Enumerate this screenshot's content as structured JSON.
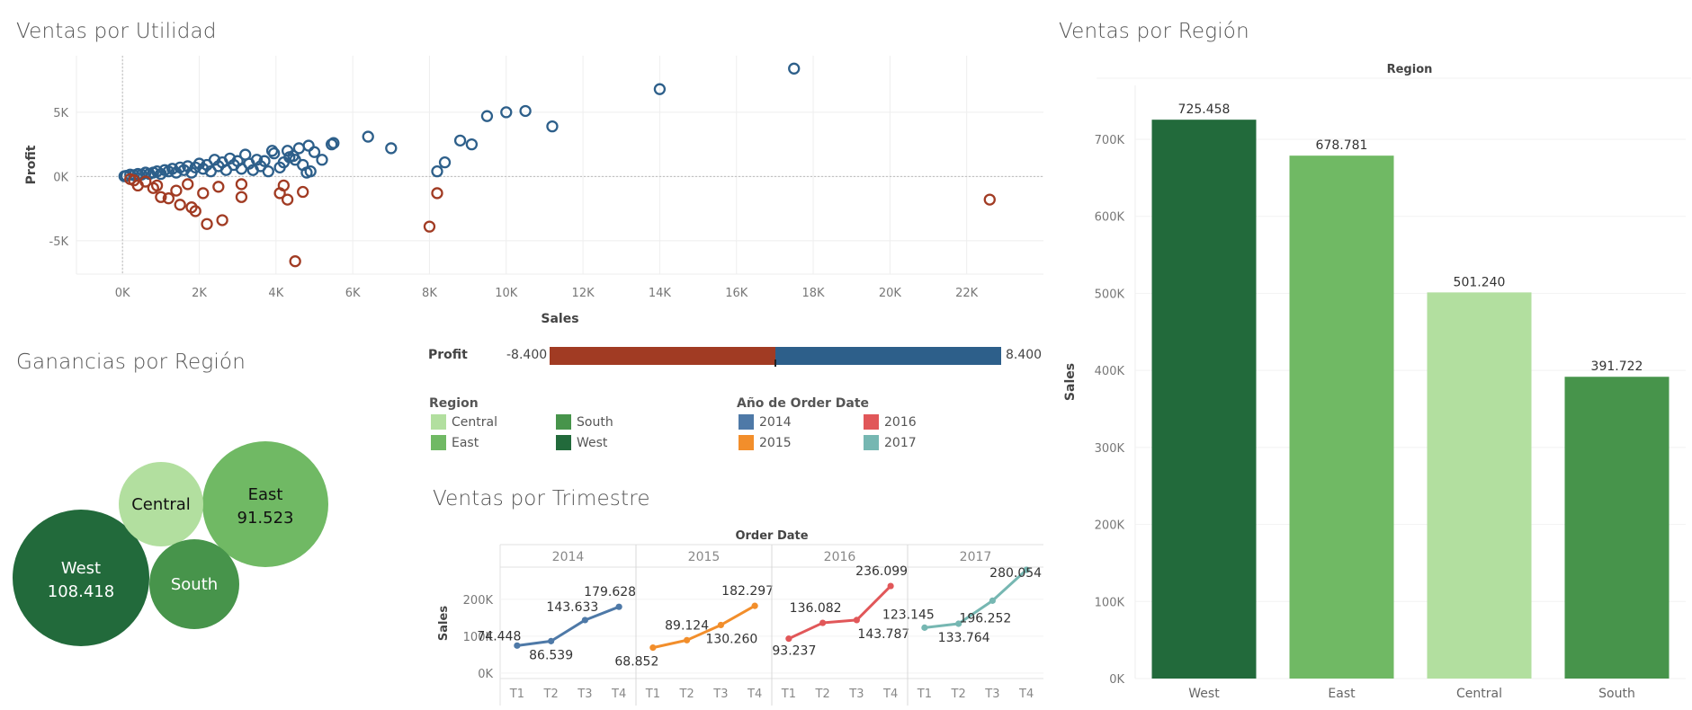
{
  "colors": {
    "profit_positive": "#2d5f8a",
    "profit_negative": "#a13b23",
    "west": "#226a3b",
    "east": "#70b964",
    "central": "#b2df9f",
    "south": "#47944b",
    "y2014": "#4e79a7",
    "y2015": "#f28e2b",
    "y2016": "#e15759",
    "y2017": "#76b7b2"
  },
  "scatter": {
    "title": "Ventas por Utilidad",
    "chart_data": {
      "type": "scatter",
      "xlabel": "Sales",
      "ylabel": "Profit",
      "xlim": [
        -1200,
        24000
      ],
      "ylim": [
        -7600,
        9400
      ],
      "x_ticks": [
        "0K",
        "2K",
        "4K",
        "6K",
        "8K",
        "10K",
        "12K",
        "14K",
        "16K",
        "18K",
        "20K",
        "22K"
      ],
      "x_tick_values": [
        0,
        2000,
        4000,
        6000,
        8000,
        10000,
        12000,
        14000,
        16000,
        18000,
        20000,
        22000
      ],
      "y_ticks": [
        "5K",
        "0K",
        "-5K"
      ],
      "y_tick_values": [
        5000,
        0,
        -5000
      ],
      "grid": true,
      "points": [
        {
          "x": 17500,
          "y": 8400
        },
        {
          "x": 14000,
          "y": 6800
        },
        {
          "x": 11200,
          "y": 3900
        },
        {
          "x": 10500,
          "y": 5100
        },
        {
          "x": 10000,
          "y": 5000
        },
        {
          "x": 9500,
          "y": 4700
        },
        {
          "x": 9100,
          "y": 2500
        },
        {
          "x": 8800,
          "y": 2800
        },
        {
          "x": 8400,
          "y": 1100
        },
        {
          "x": 8200,
          "y": 400
        },
        {
          "x": 7000,
          "y": 2200
        },
        {
          "x": 6400,
          "y": 3100
        },
        {
          "x": 5500,
          "y": 2600
        },
        {
          "x": 5450,
          "y": 2500
        },
        {
          "x": 5200,
          "y": 1300
        },
        {
          "x": 5000,
          "y": 1900
        },
        {
          "x": 4900,
          "y": 400
        },
        {
          "x": 4850,
          "y": 2400
        },
        {
          "x": 4800,
          "y": 300
        },
        {
          "x": 4700,
          "y": 900
        },
        {
          "x": 4600,
          "y": 2200
        },
        {
          "x": 4500,
          "y": 1300
        },
        {
          "x": 4450,
          "y": 1600
        },
        {
          "x": 4350,
          "y": 1500
        },
        {
          "x": 4300,
          "y": 2000
        },
        {
          "x": 4200,
          "y": 1100
        },
        {
          "x": 4100,
          "y": 700
        },
        {
          "x": 3950,
          "y": 1800
        },
        {
          "x": 3900,
          "y": 2000
        },
        {
          "x": 3800,
          "y": 400
        },
        {
          "x": 3700,
          "y": 1200
        },
        {
          "x": 3600,
          "y": 800
        },
        {
          "x": 3500,
          "y": 1300
        },
        {
          "x": 3400,
          "y": 500
        },
        {
          "x": 3300,
          "y": 1000
        },
        {
          "x": 3200,
          "y": 1700
        },
        {
          "x": 3100,
          "y": 600
        },
        {
          "x": 3000,
          "y": 1200
        },
        {
          "x": 2900,
          "y": 900
        },
        {
          "x": 2800,
          "y": 1400
        },
        {
          "x": 2700,
          "y": 500
        },
        {
          "x": 2600,
          "y": 1100
        },
        {
          "x": 2500,
          "y": 800
        },
        {
          "x": 2400,
          "y": 1300
        },
        {
          "x": 2300,
          "y": 400
        },
        {
          "x": 2200,
          "y": 900
        },
        {
          "x": 2100,
          "y": 600
        },
        {
          "x": 2000,
          "y": 1000
        },
        {
          "x": 1900,
          "y": 700
        },
        {
          "x": 1800,
          "y": 300
        },
        {
          "x": 1700,
          "y": 800
        },
        {
          "x": 1600,
          "y": 500
        },
        {
          "x": 1500,
          "y": 700
        },
        {
          "x": 1400,
          "y": 300
        },
        {
          "x": 1300,
          "y": 600
        },
        {
          "x": 1200,
          "y": 400
        },
        {
          "x": 1100,
          "y": 500
        },
        {
          "x": 1000,
          "y": 200
        },
        {
          "x": 900,
          "y": 400
        },
        {
          "x": 800,
          "y": 300
        },
        {
          "x": 700,
          "y": 200
        },
        {
          "x": 600,
          "y": 300
        },
        {
          "x": 500,
          "y": 150
        },
        {
          "x": 400,
          "y": 200
        },
        {
          "x": 300,
          "y": 100
        },
        {
          "x": 200,
          "y": 150
        },
        {
          "x": 100,
          "y": 50
        },
        {
          "x": 50,
          "y": 20
        },
        {
          "x": 22600,
          "y": -1800
        },
        {
          "x": 8200,
          "y": -1300
        },
        {
          "x": 8000,
          "y": -3900
        },
        {
          "x": 4500,
          "y": -6600
        },
        {
          "x": 4300,
          "y": -1800
        },
        {
          "x": 4200,
          "y": -700
        },
        {
          "x": 4100,
          "y": -1300
        },
        {
          "x": 4700,
          "y": -1200
        },
        {
          "x": 3100,
          "y": -600
        },
        {
          "x": 3100,
          "y": -1600
        },
        {
          "x": 2600,
          "y": -3400
        },
        {
          "x": 2500,
          "y": -800
        },
        {
          "x": 2200,
          "y": -3700
        },
        {
          "x": 2100,
          "y": -1300
        },
        {
          "x": 1900,
          "y": -2700
        },
        {
          "x": 1800,
          "y": -2400
        },
        {
          "x": 1700,
          "y": -600
        },
        {
          "x": 1500,
          "y": -2200
        },
        {
          "x": 1400,
          "y": -1100
        },
        {
          "x": 1200,
          "y": -1700
        },
        {
          "x": 1000,
          "y": -1600
        },
        {
          "x": 900,
          "y": -700
        },
        {
          "x": 800,
          "y": -900
        },
        {
          "x": 600,
          "y": -400
        },
        {
          "x": 400,
          "y": -700
        },
        {
          "x": 300,
          "y": -300
        },
        {
          "x": 200,
          "y": -200
        }
      ]
    }
  },
  "profit_legend": {
    "label": "Profit",
    "min_label": "-8.400",
    "max_label": "8.400"
  },
  "region_legend": {
    "title": "Region",
    "items": [
      {
        "label": "Central",
        "color": "#b2df9f"
      },
      {
        "label": "South",
        "color": "#47944b"
      },
      {
        "label": "East",
        "color": "#70b964"
      },
      {
        "label": "West",
        "color": "#226a3b"
      }
    ]
  },
  "year_legend": {
    "title": "Año de Order Date",
    "items": [
      {
        "label": "2014",
        "color": "#4e79a7"
      },
      {
        "label": "2016",
        "color": "#e15759"
      },
      {
        "label": "2015",
        "color": "#f28e2b"
      },
      {
        "label": "2017",
        "color": "#76b7b2"
      }
    ]
  },
  "bubbles": {
    "title": "Ganancias por Región",
    "chart_data": {
      "type": "bubble",
      "items": [
        {
          "region": "West",
          "label": "West",
          "value_label": "108.418",
          "value": 108418,
          "color": "#226a3b",
          "text_color": "#ffffff"
        },
        {
          "region": "East",
          "label": "East",
          "value_label": "91.523",
          "value": 91523,
          "color": "#70b964",
          "text_color": "#111111"
        },
        {
          "region": "Central",
          "label": "Central",
          "value_label": "",
          "value": 39706,
          "color": "#b2df9f",
          "text_color": "#111111"
        },
        {
          "region": "South",
          "label": "South",
          "value_label": "",
          "value": 46749,
          "color": "#47944b",
          "text_color": "#ffffff"
        }
      ]
    }
  },
  "region_bars": {
    "title": "Ventas por Región",
    "chart_data": {
      "type": "bar",
      "header": "Region",
      "ylabel": "Sales",
      "ylim": [
        0,
        770000
      ],
      "y_ticks": [
        "0K",
        "100K",
        "200K",
        "300K",
        "400K",
        "500K",
        "600K",
        "700K"
      ],
      "y_tick_values": [
        0,
        100000,
        200000,
        300000,
        400000,
        500000,
        600000,
        700000
      ],
      "categories": [
        "West",
        "East",
        "Central",
        "South"
      ],
      "values": [
        725458,
        678781,
        501240,
        391722
      ],
      "value_labels": [
        "725.458",
        "678.781",
        "501.240",
        "391.722"
      ],
      "colors": [
        "#226a3b",
        "#70b964",
        "#b2df9f",
        "#47944b"
      ]
    }
  },
  "quarterly": {
    "title": "Ventas por Trimestre",
    "chart_data": {
      "type": "line",
      "header": "Order Date",
      "ylabel": "Sales",
      "ylim": [
        -15000,
        285000
      ],
      "y_ticks": [
        "200K",
        "100K",
        "0K"
      ],
      "y_tick_values": [
        200000,
        100000,
        0
      ],
      "quarters": [
        "T1",
        "T2",
        "T3",
        "T4"
      ],
      "series": [
        {
          "name": "2014",
          "color": "#4e79a7",
          "values": [
            74448,
            86539,
            143633,
            179628
          ],
          "labels": [
            "74.448",
            "86.539",
            "143.633",
            "179.628"
          ]
        },
        {
          "name": "2015",
          "color": "#f28e2b",
          "values": [
            68852,
            89124,
            130260,
            182297
          ],
          "labels": [
            "68.852",
            "89.124",
            "130.260",
            "182.297"
          ]
        },
        {
          "name": "2016",
          "color": "#e15759",
          "values": [
            93237,
            136082,
            143787,
            236099
          ],
          "labels": [
            "93.237",
            "136.082",
            "143.787",
            "236.099"
          ]
        },
        {
          "name": "2017",
          "color": "#76b7b2",
          "values": [
            123145,
            133764,
            196252,
            280054
          ],
          "labels": [
            "123.145",
            "133.764",
            "196.252",
            "280.054"
          ]
        }
      ]
    }
  }
}
